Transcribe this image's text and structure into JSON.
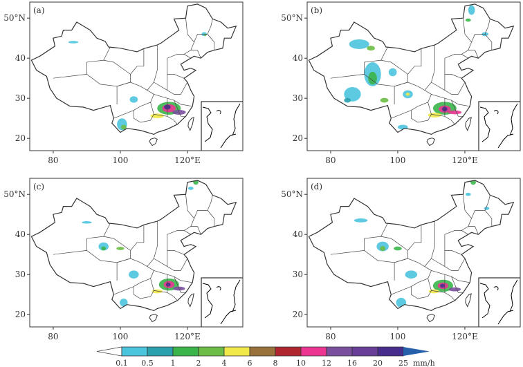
{
  "chart_data": {
    "type": "map",
    "lon_range": [
      73,
      136.3
    ],
    "lat_range": [
      17,
      54
    ],
    "lon_ticks": [
      {
        "value": 80,
        "label": "80"
      },
      {
        "value": 100,
        "label": "100"
      },
      {
        "value": 120,
        "label": "120°E"
      }
    ],
    "lat_ticks": [
      {
        "value": 50,
        "label": "50°N"
      },
      {
        "value": 40,
        "label": "40"
      },
      {
        "value": 30,
        "label": "30"
      },
      {
        "value": 20,
        "label": "20"
      }
    ],
    "panels": [
      {
        "label": "(a)",
        "rain": [
          [
            114.5,
            27.5,
            3.5,
            1.6,
            "#3ab54a"
          ],
          [
            114.5,
            27.5,
            2,
            1,
            "#ec3493"
          ],
          [
            114,
            27.8,
            1,
            0.6,
            "#482d8c"
          ],
          [
            111,
            25.6,
            2,
            0.6,
            "#f1e94a"
          ],
          [
            117.5,
            26.5,
            2,
            0.6,
            "#7a4f9e"
          ],
          [
            104,
            29.7,
            1.2,
            0.8,
            "#4bc4de"
          ],
          [
            100.5,
            23.5,
            1.5,
            1.5,
            "#4bc4de"
          ],
          [
            101,
            22.8,
            0.8,
            0.6,
            "#6bbd45"
          ],
          [
            125,
            46,
            0.8,
            0.5,
            "#4bc4de"
          ],
          [
            125.3,
            45.8,
            0.3,
            0.3,
            "#6bbd45"
          ],
          [
            86,
            44,
            1.5,
            0.3,
            "#4bc4de"
          ]
        ]
      },
      {
        "label": "(b)",
        "rain": [
          [
            92.5,
            36,
            2.5,
            3,
            "#4bc4de"
          ],
          [
            92.5,
            35,
            1.3,
            1.6,
            "#3ab54a"
          ],
          [
            86.5,
            31,
            2.5,
            1.8,
            "#4bc4de"
          ],
          [
            85,
            29.5,
            1,
            0.6,
            "#2aa0ae"
          ],
          [
            88.5,
            43.5,
            3,
            1.2,
            "#4bc4de"
          ],
          [
            92,
            42.5,
            1.2,
            0.6,
            "#6bbd45"
          ],
          [
            98.5,
            36.5,
            1.2,
            1,
            "#4bc4de"
          ],
          [
            96,
            29.5,
            1.2,
            0.6,
            "#6bbd45"
          ],
          [
            103,
            31,
            1.5,
            1,
            "#4bc4de"
          ],
          [
            103,
            31,
            0.6,
            0.4,
            "#f1e94a"
          ],
          [
            114,
            27.5,
            3.5,
            1.6,
            "#3ab54a"
          ],
          [
            114,
            27.3,
            1.8,
            0.9,
            "#ec3493"
          ],
          [
            114,
            27.3,
            0.8,
            0.6,
            "#482d8c"
          ],
          [
            111,
            25.8,
            2,
            0.6,
            "#f1e94a"
          ],
          [
            117,
            26.5,
            2,
            0.5,
            "#ec3493"
          ],
          [
            101.5,
            22.8,
            1.5,
            0.6,
            "#4bc4de"
          ],
          [
            122,
            52,
            1,
            1.2,
            "#4bc4de"
          ],
          [
            121,
            49.5,
            0.8,
            0.4,
            "#3ab54a"
          ],
          [
            126,
            46,
            1,
            0.5,
            "#4bc4de"
          ]
        ]
      },
      {
        "label": "(c)",
        "rain": [
          [
            114.5,
            27.5,
            3,
            1.5,
            "#3ab54a"
          ],
          [
            114.5,
            27.5,
            1.6,
            0.9,
            "#ec3493"
          ],
          [
            114.3,
            27.5,
            0.7,
            0.5,
            "#482d8c"
          ],
          [
            111,
            25.8,
            1.6,
            0.5,
            "#f1e94a"
          ],
          [
            117.5,
            26.5,
            1.8,
            0.5,
            "#7a4f9e"
          ],
          [
            104,
            30,
            1.5,
            1,
            "#4bc4de"
          ],
          [
            101,
            23,
            1.2,
            1,
            "#4bc4de"
          ],
          [
            95,
            37,
            1.5,
            1,
            "#4bc4de"
          ],
          [
            95,
            36.5,
            0.7,
            0.5,
            "#3ab54a"
          ],
          [
            100,
            36.5,
            1.2,
            0.4,
            "#6bbd45"
          ],
          [
            122.5,
            53,
            0.8,
            0.6,
            "#3ab54a"
          ],
          [
            121,
            51.5,
            0.8,
            0.4,
            "#4bc4de"
          ],
          [
            90,
            43,
            1.5,
            0.3,
            "#4bc4de"
          ]
        ]
      },
      {
        "label": "(d)",
        "rain": [
          [
            113.5,
            27.2,
            3,
            1.5,
            "#3ab54a"
          ],
          [
            113.5,
            27.2,
            1.6,
            0.8,
            "#ec3493"
          ],
          [
            113.3,
            27.2,
            0.7,
            0.5,
            "#482d8c"
          ],
          [
            110.8,
            25.8,
            1.6,
            0.5,
            "#f1e94a"
          ],
          [
            117,
            26.3,
            1.8,
            0.5,
            "#7a4f9e"
          ],
          [
            104,
            30,
            1.8,
            1,
            "#4bc4de"
          ],
          [
            101,
            23,
            1.5,
            1.2,
            "#4bc4de"
          ],
          [
            95.5,
            37,
            1.8,
            1.2,
            "#4bc4de"
          ],
          [
            95.5,
            36.5,
            0.8,
            0.6,
            "#6bbd45"
          ],
          [
            100,
            36.5,
            1.2,
            0.5,
            "#3ab54a"
          ],
          [
            89,
            43.5,
            2,
            0.5,
            "#4bc4de"
          ],
          [
            122.5,
            53,
            0.8,
            0.6,
            "#3ab54a"
          ],
          [
            121,
            50,
            0.8,
            0.4,
            "#4bc4de"
          ],
          [
            126.5,
            46.5,
            0.8,
            0.4,
            "#4bc4de"
          ]
        ]
      }
    ],
    "colorbar": {
      "labels": [
        "0.1",
        "0.5",
        "1",
        "2",
        "4",
        "6",
        "8",
        "10",
        "12",
        "16",
        "20",
        "25"
      ],
      "unit": "mm/h",
      "colors": [
        "#4bc4de",
        "#2aa0ae",
        "#3ab54a",
        "#6bbd45",
        "#f1e94a",
        "#98723a",
        "#b0262e",
        "#ec3493",
        "#7a4f9e",
        "#673f98",
        "#482d8c"
      ],
      "over_color": "#2660ab",
      "under_color": "#ffffff"
    }
  }
}
